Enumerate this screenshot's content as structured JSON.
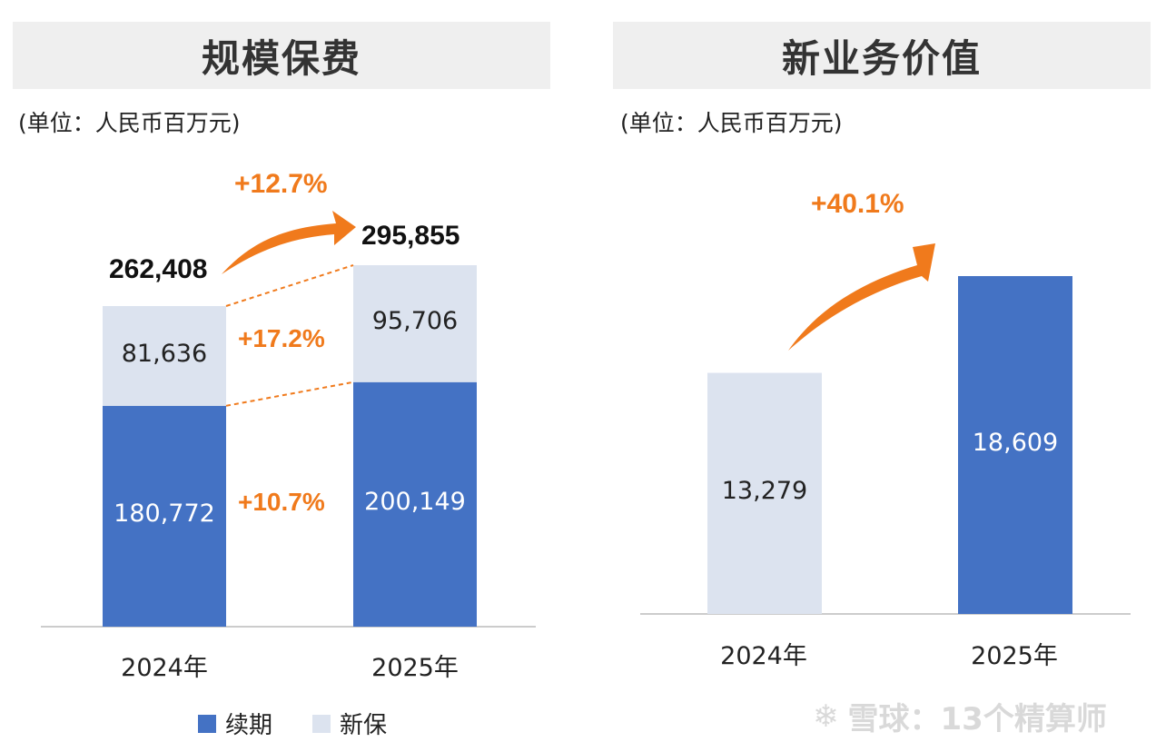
{
  "left_panel": {
    "title": "规模保费",
    "unit": "(单位：人民币百万元)",
    "growth_total": "+12.7%",
    "growth_new": "+17.2%",
    "growth_renewal": "+10.7%"
  },
  "right_panel": {
    "title": "新业务价值",
    "unit": "(单位：人民币百万元)",
    "growth": "+40.1%"
  },
  "legend": {
    "renewal": "续期",
    "new": "新保"
  },
  "watermark": "雪球：13个精算师",
  "colors": {
    "renewal": "#4472c4",
    "new": "#dce3ef",
    "accent": "#f07a1c"
  },
  "chart_data": [
    {
      "type": "bar",
      "stacked": true,
      "title": "规模保费",
      "unit": "人民币百万元",
      "categories": [
        "2024年",
        "2025年"
      ],
      "series": [
        {
          "name": "续期",
          "values": [
            180772,
            200149
          ],
          "labels": [
            "180,772",
            "200,149"
          ]
        },
        {
          "name": "新保",
          "values": [
            81636,
            95706
          ],
          "labels": [
            "81,636",
            "95,706"
          ]
        }
      ],
      "totals": [
        262408,
        295855
      ],
      "total_labels": [
        "262,408",
        "295,855"
      ],
      "annotations": [
        "+12.7%",
        "+17.2%",
        "+10.7%"
      ]
    },
    {
      "type": "bar",
      "title": "新业务价值",
      "unit": "人民币百万元",
      "categories": [
        "2024年",
        "2025年"
      ],
      "values": [
        13279,
        18609
      ],
      "labels": [
        "13,279",
        "18,609"
      ],
      "annotations": [
        "+40.1%"
      ]
    }
  ]
}
